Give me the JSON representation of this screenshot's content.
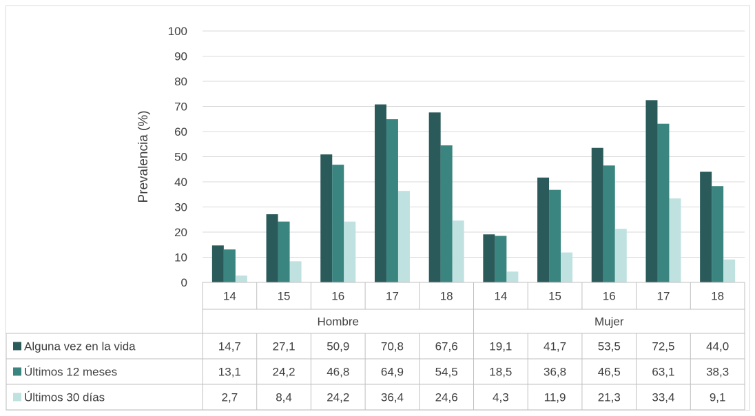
{
  "chart_data": {
    "type": "bar",
    "title": "",
    "xlabel": "",
    "ylabel": "Prevalencia (%)",
    "ylim": [
      0,
      100
    ],
    "yticks": [
      "0",
      "10",
      "20",
      "30",
      "40",
      "50",
      "60",
      "70",
      "80",
      "90",
      "100"
    ],
    "gridlines": true,
    "groups": [
      {
        "label": "Hombre",
        "categories": [
          "14",
          "15",
          "16",
          "17",
          "18"
        ]
      },
      {
        "label": "Mujer",
        "categories": [
          "14",
          "15",
          "16",
          "17",
          "18"
        ]
      }
    ],
    "series": [
      {
        "name": "Alguna vez en la vida",
        "color": "#2a5a5a",
        "values": [
          14.7,
          27.1,
          50.9,
          70.8,
          67.6,
          19.1,
          41.7,
          53.5,
          72.5,
          44.0
        ],
        "labels": [
          "14,7",
          "27,1",
          "50,9",
          "70,8",
          "67,6",
          "19,1",
          "41,7",
          "53,5",
          "72,5",
          "44,0"
        ]
      },
      {
        "name": "Últimos 12 meses",
        "color": "#3b8580",
        "values": [
          13.1,
          24.2,
          46.8,
          64.9,
          54.5,
          18.5,
          36.8,
          46.5,
          63.1,
          38.3
        ],
        "labels": [
          "13,1",
          "24,2",
          "46,8",
          "64,9",
          "54,5",
          "18,5",
          "36,8",
          "46,5",
          "63,1",
          "38,3"
        ]
      },
      {
        "name": "Últimos 30 días",
        "color": "#bfe2e0",
        "values": [
          2.7,
          8.4,
          24.2,
          36.4,
          24.6,
          4.3,
          11.9,
          21.3,
          33.4,
          9.1
        ],
        "labels": [
          "2,7",
          "8,4",
          "24,2",
          "36,4",
          "24,6",
          "4,3",
          "11,9",
          "21,3",
          "33,4",
          "9,1"
        ]
      }
    ]
  }
}
